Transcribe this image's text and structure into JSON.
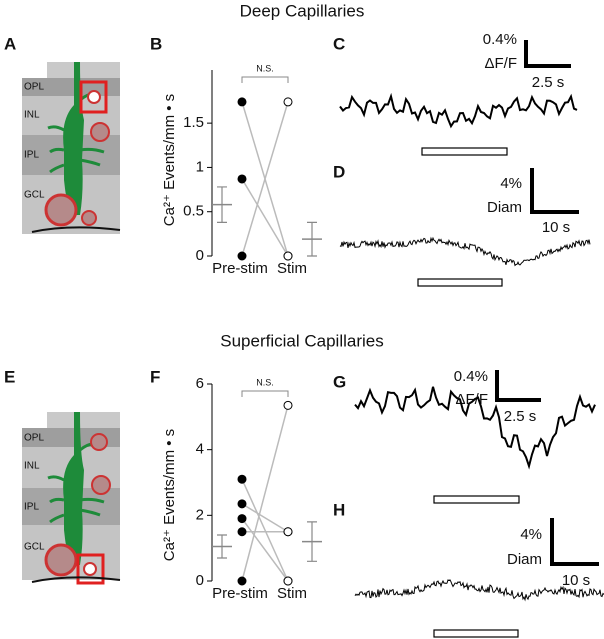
{
  "header": {
    "top_title": "Deep Capillaries",
    "bottom_title": "Superficial Capillaries"
  },
  "panels": {
    "A": "A",
    "B": "B",
    "C": "C",
    "D": "D",
    "E": "E",
    "F": "F",
    "G": "G",
    "H": "H"
  },
  "diagrams": [
    {
      "layers": [
        "OPL",
        "INL",
        "IPL",
        "GCL"
      ]
    },
    {
      "layers": [
        "OPL",
        "INL",
        "IPL",
        "GCL"
      ]
    }
  ],
  "scale_bars": {
    "C": {
      "y": "0.4%",
      "y_unit": "ΔF/F",
      "x": "2.5 s"
    },
    "D": {
      "y": "4%",
      "y_unit": "Diam",
      "x": "10 s"
    },
    "G": {
      "y": "0.4%",
      "y_unit": "ΔF/F",
      "x": "2.5 s"
    },
    "H": {
      "y": "4%",
      "y_unit": "Diam",
      "x": "10 s"
    }
  },
  "chart_data": [
    {
      "type": "paired",
      "y_label": "Ca²⁺ Events/mm • s",
      "categories": [
        "Pre-stim",
        "Stim"
      ],
      "annotation": "N.S.",
      "series": [
        {
          "values": [
            1.74,
            0
          ]
        },
        {
          "values": [
            0.87,
            0
          ]
        },
        {
          "values": [
            0,
            1.74
          ]
        }
      ],
      "means": [
        0.58,
        0.19
      ],
      "errors": [
        0.2,
        0.19
      ],
      "ylim": [
        0,
        2.1
      ],
      "yticks": [
        0,
        0.5,
        1,
        1.5
      ],
      "pre_color": "#000000",
      "stim_color": "#ffffff",
      "line_color": "#bbbbbb",
      "mean_color": "#888888"
    },
    {
      "type": "paired",
      "y_label": "Ca²⁺ Events/mm • s",
      "categories": [
        "Pre-stim",
        "Stim"
      ],
      "annotation": "N.S.",
      "series": [
        {
          "values": [
            3.1,
            0
          ]
        },
        {
          "values": [
            2.35,
            1.5
          ]
        },
        {
          "values": [
            1.9,
            0
          ]
        },
        {
          "values": [
            1.5,
            1.5
          ]
        },
        {
          "values": [
            0,
            5.35
          ]
        }
      ],
      "means": [
        1.05,
        1.2
      ],
      "errors": [
        0.35,
        0.6
      ],
      "ylim": [
        0,
        6
      ],
      "yticks": [
        0,
        2,
        4,
        6
      ],
      "pre_color": "#000000",
      "stim_color": "#ffffff",
      "line_color": "#bbbbbb",
      "mean_color": "#888888"
    }
  ]
}
